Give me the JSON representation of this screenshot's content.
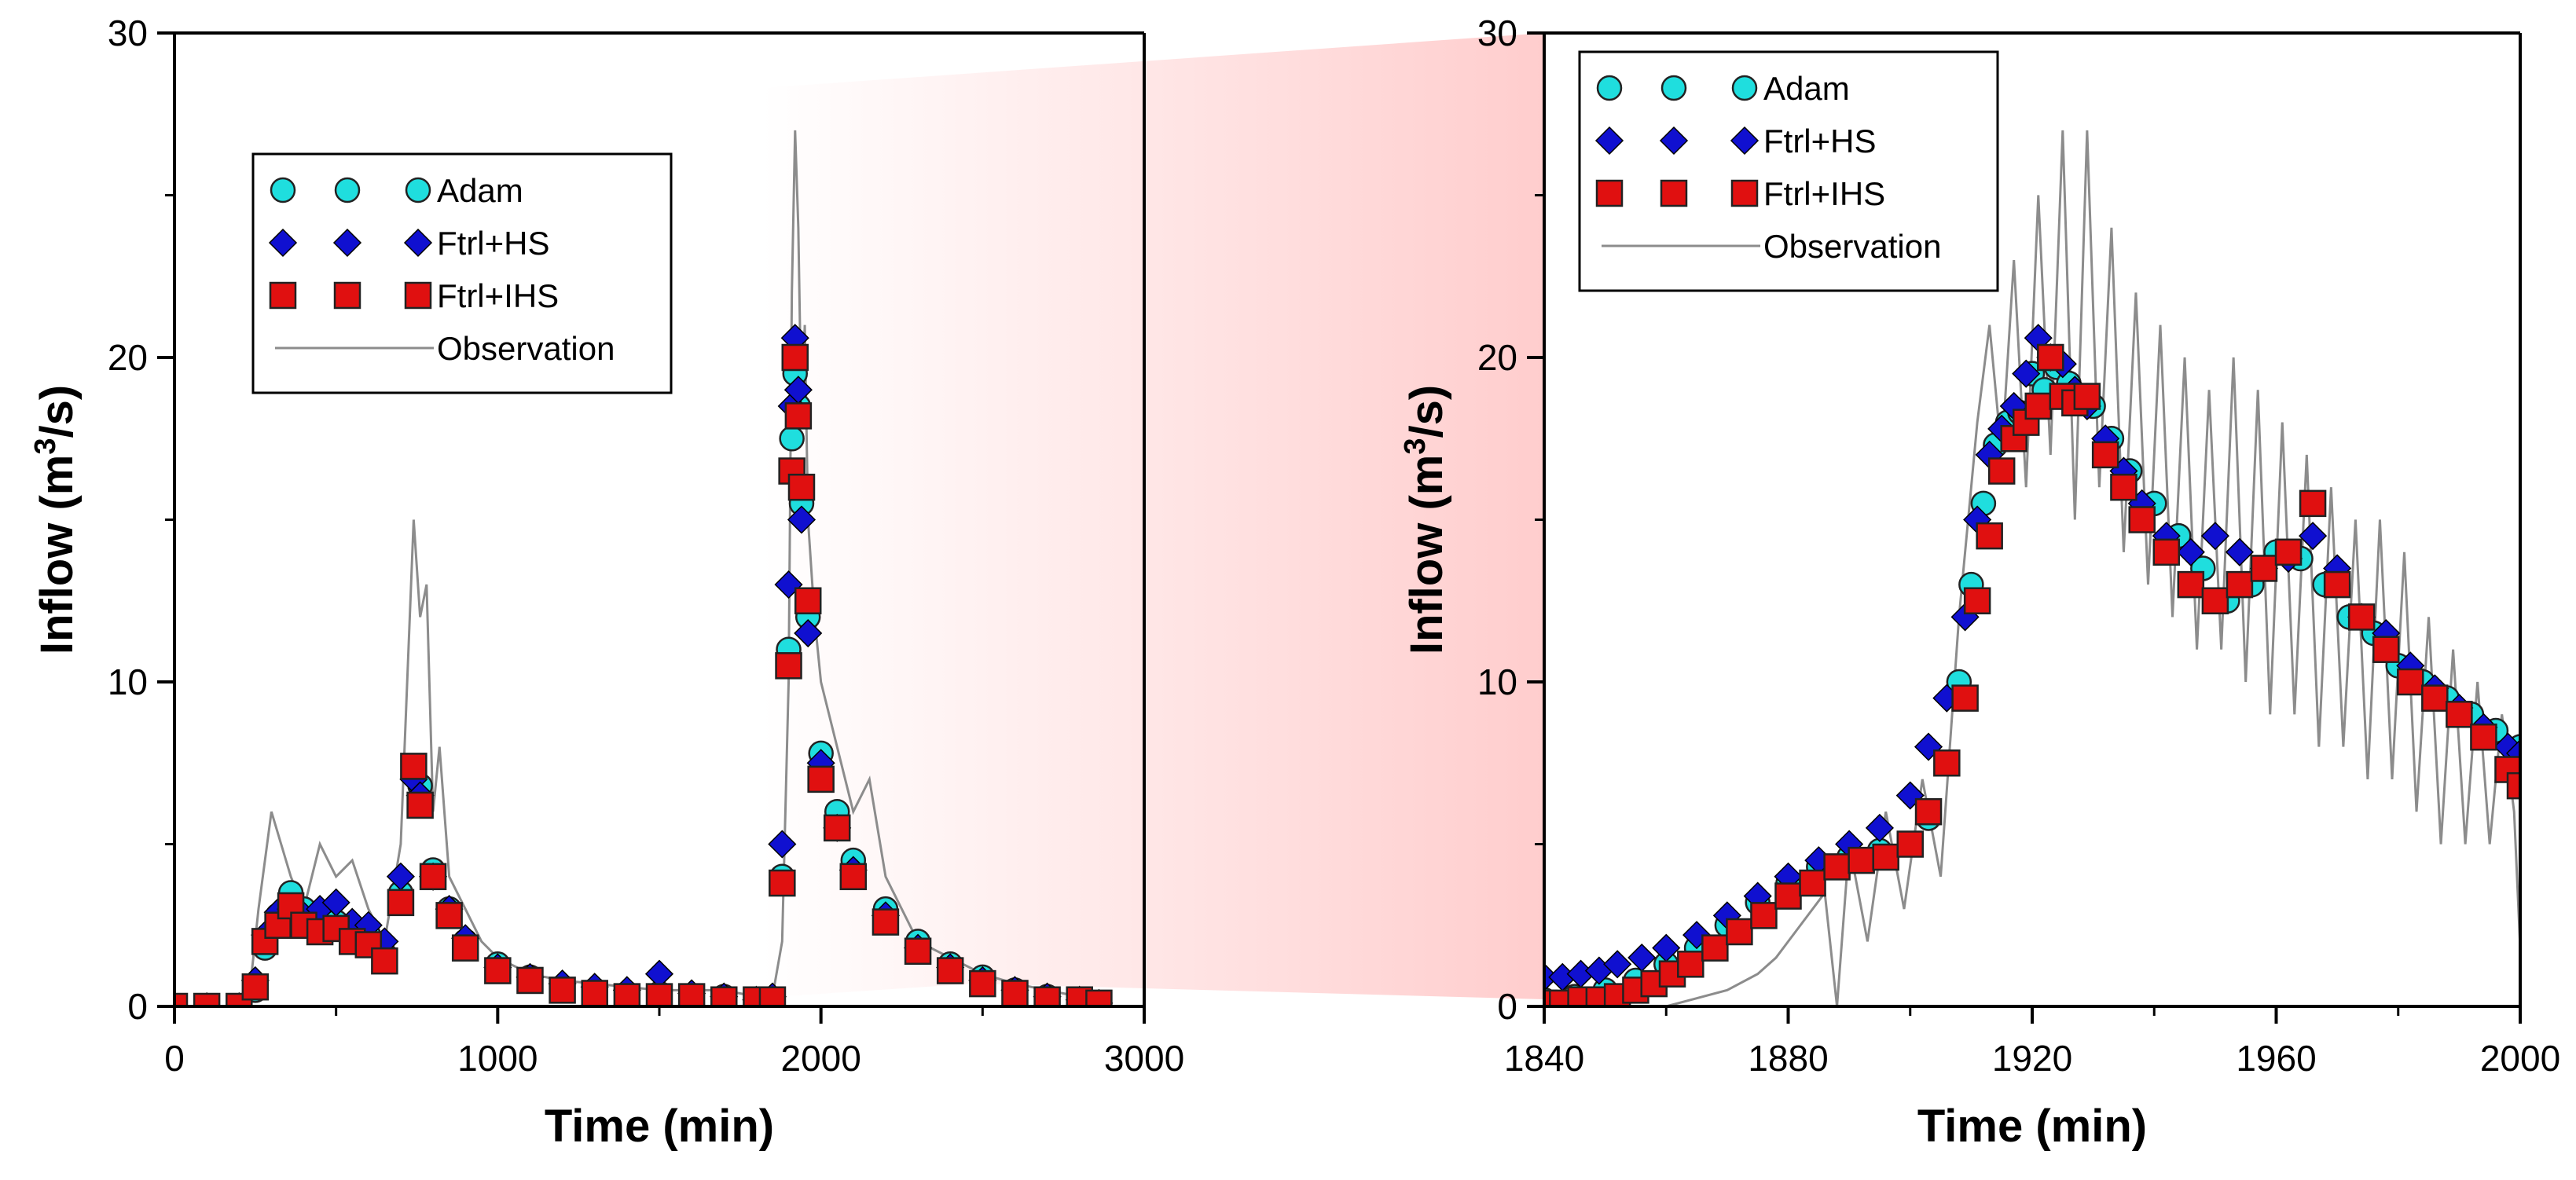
{
  "chart_data": [
    {
      "type": "scatter",
      "panel": "left",
      "xlabel": "Time (min)",
      "ylabel_prefix": "Inflow (m",
      "ylabel_sup": "3",
      "ylabel_suffix": "/s)",
      "xlim": [
        0,
        3000
      ],
      "ylim": [
        0,
        30
      ],
      "xticks": [
        0,
        1000,
        2000,
        3000
      ],
      "yticks": [
        0,
        10,
        20,
        30
      ],
      "legend_position": "upper-left",
      "legend": [
        "Adam",
        "Ftrl+HS",
        "Ftrl+IHS",
        "Observation"
      ],
      "series": [
        {
          "name": "Adam",
          "marker": "circle",
          "color": "#1fdede",
          "x": [
            0,
            100,
            200,
            250,
            280,
            320,
            360,
            400,
            450,
            500,
            550,
            600,
            650,
            700,
            740,
            760,
            800,
            850,
            900,
            1000,
            1100,
            1200,
            1300,
            1400,
            1500,
            1600,
            1700,
            1800,
            1850,
            1880,
            1900,
            1910,
            1920,
            1930,
            1940,
            1960,
            2000,
            2050,
            2100,
            2200,
            2300,
            2400,
            2500,
            2600,
            2700,
            2800,
            2860
          ],
          "y": [
            0,
            0,
            0,
            0.5,
            1.8,
            2.8,
            3.5,
            3.0,
            2.7,
            2.6,
            2.3,
            2.2,
            1.6,
            3.5,
            7.2,
            6.8,
            4.2,
            3.0,
            2.0,
            1.3,
            0.9,
            0.6,
            0.5,
            0.4,
            0.4,
            0.3,
            0.3,
            0.2,
            0.2,
            4.0,
            11,
            17.5,
            19.5,
            18.5,
            15.5,
            12,
            7.8,
            6.0,
            4.5,
            3.0,
            2.0,
            1.3,
            0.9,
            0.5,
            0.3,
            0.2,
            0.1
          ]
        },
        {
          "name": "Ftrl+HS",
          "marker": "diamond",
          "color": "#1010d0",
          "x": [
            0,
            100,
            200,
            250,
            280,
            320,
            360,
            400,
            450,
            500,
            550,
            600,
            650,
            700,
            740,
            760,
            800,
            850,
            900,
            1000,
            1100,
            1200,
            1300,
            1400,
            1500,
            1600,
            1700,
            1800,
            1850,
            1880,
            1900,
            1910,
            1920,
            1930,
            1940,
            1960,
            2000,
            2050,
            2100,
            2200,
            2300,
            2400,
            2500,
            2600,
            2700,
            2800,
            2860
          ],
          "y": [
            0,
            0,
            0,
            0.8,
            2.2,
            2.9,
            3.0,
            2.8,
            3.0,
            3.2,
            2.6,
            2.5,
            2.0,
            4.0,
            7.0,
            6.5,
            4.0,
            3.0,
            2.1,
            1.2,
            0.9,
            0.7,
            0.6,
            0.5,
            1.0,
            0.4,
            0.3,
            0.2,
            0.3,
            5.0,
            13,
            18.5,
            20.6,
            19.0,
            15,
            11.5,
            7.5,
            5.5,
            4.2,
            2.8,
            1.8,
            1.2,
            0.8,
            0.5,
            0.3,
            0.2,
            0.1
          ]
        },
        {
          "name": "Ftrl+IHS",
          "marker": "square",
          "color": "#e01010",
          "x": [
            0,
            100,
            200,
            250,
            280,
            320,
            360,
            400,
            450,
            500,
            550,
            600,
            650,
            700,
            740,
            760,
            800,
            850,
            900,
            1000,
            1100,
            1200,
            1300,
            1400,
            1500,
            1600,
            1700,
            1800,
            1850,
            1880,
            1900,
            1910,
            1920,
            1930,
            1940,
            1960,
            2000,
            2050,
            2100,
            2200,
            2300,
            2400,
            2500,
            2600,
            2700,
            2800,
            2860
          ],
          "y": [
            0,
            0,
            0,
            0.6,
            2.0,
            2.5,
            3.1,
            2.5,
            2.3,
            2.4,
            2.0,
            1.9,
            1.4,
            3.2,
            7.4,
            6.2,
            4.0,
            2.8,
            1.8,
            1.1,
            0.8,
            0.5,
            0.4,
            0.3,
            0.3,
            0.3,
            0.2,
            0.2,
            0.2,
            3.8,
            10.5,
            16.5,
            20,
            18.2,
            16,
            12.5,
            7.0,
            5.5,
            4.0,
            2.6,
            1.7,
            1.1,
            0.7,
            0.4,
            0.2,
            0.2,
            0.1
          ]
        },
        {
          "name": "Observation",
          "marker": "line",
          "color": "#8c8c8c",
          "x": [
            0,
            200,
            230,
            260,
            300,
            330,
            360,
            400,
            450,
            500,
            550,
            600,
            650,
            700,
            720,
            740,
            760,
            780,
            800,
            820,
            850,
            900,
            950,
            1000,
            1100,
            1200,
            1300,
            1400,
            1500,
            1600,
            1700,
            1800,
            1850,
            1880,
            1900,
            1910,
            1920,
            1930,
            1940,
            1950,
            1960,
            1980,
            2000,
            2050,
            2100,
            2150,
            2200,
            2300,
            2400,
            2500,
            2600,
            2700,
            2800,
            2860
          ],
          "y": [
            0,
            0,
            0.2,
            3,
            6,
            5,
            4,
            3,
            5,
            4,
            4.5,
            3,
            2,
            5,
            10,
            15,
            12,
            13,
            6,
            8,
            4,
            3,
            2,
            1.5,
            1,
            0.8,
            0.7,
            0.6,
            0.5,
            0.5,
            0.5,
            0.3,
            0.3,
            2,
            10,
            22,
            27,
            24,
            18,
            21,
            15,
            12,
            10,
            8,
            6,
            7,
            4,
            2,
            1.5,
            1,
            0.7,
            0.5,
            0.3,
            0.2
          ]
        }
      ]
    },
    {
      "type": "scatter",
      "panel": "right",
      "xlabel": "Time (min)",
      "ylabel_prefix": "Inflow (m",
      "ylabel_sup": "3",
      "ylabel_suffix": "/s)",
      "xlim": [
        1840,
        2000
      ],
      "ylim": [
        0,
        30
      ],
      "xticks": [
        1840,
        1880,
        1920,
        1960,
        2000
      ],
      "yticks": [
        0,
        10,
        20,
        30
      ],
      "legend_position": "upper-left",
      "legend": [
        "Adam",
        "Ftrl+HS",
        "Ftrl+IHS",
        "Observation"
      ],
      "series": [
        {
          "name": "Adam",
          "marker": "circle",
          "color": "#1fdede",
          "x": [
            1840,
            1845,
            1850,
            1855,
            1860,
            1865,
            1870,
            1875,
            1880,
            1885,
            1890,
            1895,
            1900,
            1903,
            1906,
            1908,
            1910,
            1912,
            1914,
            1916,
            1918,
            1920,
            1922,
            1924,
            1926,
            1928,
            1930,
            1933,
            1936,
            1940,
            1944,
            1948,
            1952,
            1956,
            1960,
            1964,
            1968,
            1972,
            1976,
            1980,
            1984,
            1988,
            1992,
            1996,
            2000
          ],
          "y": [
            0.2,
            0.3,
            0.5,
            0.8,
            1.3,
            1.8,
            2.5,
            3.2,
            3.8,
            4.3,
            4.6,
            4.8,
            5.0,
            5.8,
            7.5,
            10,
            13,
            15.5,
            17.3,
            18,
            18.3,
            19.5,
            19.0,
            19.7,
            19.2,
            18.8,
            18.5,
            17.5,
            16.5,
            15.5,
            14.5,
            13.5,
            12.5,
            13,
            14,
            13.8,
            13,
            12,
            11.5,
            10.5,
            10,
            9.5,
            9,
            8.5,
            8
          ]
        },
        {
          "name": "Ftrl+HS",
          "marker": "diamond",
          "color": "#1010d0",
          "x": [
            1840,
            1843,
            1846,
            1849,
            1852,
            1856,
            1860,
            1865,
            1870,
            1875,
            1880,
            1885,
            1890,
            1895,
            1900,
            1903,
            1906,
            1909,
            1911,
            1913,
            1915,
            1917,
            1919,
            1921,
            1923,
            1925,
            1927,
            1929,
            1932,
            1935,
            1938,
            1942,
            1946,
            1950,
            1954,
            1958,
            1962,
            1966,
            1970,
            1974,
            1978,
            1982,
            1986,
            1990,
            1994,
            1998,
            2000
          ],
          "y": [
            0.9,
            0.9,
            1.0,
            1.1,
            1.3,
            1.5,
            1.8,
            2.2,
            2.8,
            3.4,
            4.0,
            4.5,
            5.0,
            5.5,
            6.5,
            8,
            9.5,
            12,
            15,
            17,
            17.8,
            18.5,
            19.5,
            20.6,
            20,
            19.8,
            19.0,
            18.5,
            17.5,
            16.5,
            15.5,
            14.5,
            14,
            14.5,
            14,
            13.5,
            13.8,
            14.5,
            13.5,
            12,
            11.5,
            10.5,
            9.8,
            9.2,
            8.6,
            8,
            7.8
          ]
        },
        {
          "name": "Ftrl+IHS",
          "marker": "square",
          "color": "#e01010",
          "x": [
            1840,
            1843,
            1846,
            1849,
            1852,
            1855,
            1858,
            1861,
            1864,
            1868,
            1872,
            1876,
            1880,
            1884,
            1888,
            1892,
            1896,
            1900,
            1903,
            1906,
            1909,
            1911,
            1913,
            1915,
            1917,
            1919,
            1921,
            1923,
            1925,
            1927,
            1929,
            1932,
            1935,
            1938,
            1942,
            1946,
            1950,
            1954,
            1958,
            1962,
            1966,
            1970,
            1974,
            1978,
            1982,
            1986,
            1990,
            1994,
            1998,
            2000
          ],
          "y": [
            0.1,
            0.1,
            0.2,
            0.2,
            0.3,
            0.5,
            0.7,
            1.0,
            1.3,
            1.8,
            2.3,
            2.8,
            3.4,
            3.8,
            4.3,
            4.5,
            4.6,
            5.0,
            6.0,
            7.5,
            9.5,
            12.5,
            14.5,
            16.5,
            17.5,
            18,
            18.5,
            20,
            18.8,
            18.6,
            18.8,
            17,
            16,
            15,
            14,
            13,
            12.5,
            13,
            13.5,
            14,
            15.5,
            13,
            12,
            11,
            10,
            9.5,
            9,
            8.3,
            7.3,
            6.8
          ]
        },
        {
          "name": "Observation",
          "marker": "line",
          "color": "#8c8c8c",
          "x": [
            1840,
            1860,
            1870,
            1875,
            1878,
            1880,
            1882,
            1884,
            1886,
            1888,
            1890,
            1893,
            1896,
            1899,
            1902,
            1905,
            1908,
            1911,
            1913,
            1915,
            1917,
            1919,
            1921,
            1923,
            1925,
            1927,
            1929,
            1931,
            1933,
            1935,
            1937,
            1939,
            1941,
            1943,
            1945,
            1947,
            1949,
            1951,
            1953,
            1955,
            1957,
            1959,
            1961,
            1963,
            1965,
            1967,
            1969,
            1971,
            1973,
            1975,
            1977,
            1979,
            1981,
            1983,
            1985,
            1987,
            1989,
            1991,
            1993,
            1995,
            1997,
            1999,
            2000
          ],
          "y": [
            0,
            0,
            0.5,
            1,
            1.5,
            2,
            2.5,
            3,
            3.5,
            0,
            5,
            2,
            6,
            3,
            7,
            4,
            12,
            18,
            21,
            17,
            23,
            16,
            25,
            17,
            27,
            15,
            27,
            16,
            24,
            14,
            22,
            13,
            21,
            12,
            20,
            11,
            19,
            11,
            20,
            10,
            19,
            9,
            18,
            9,
            17,
            8,
            16,
            8,
            15,
            7,
            15,
            7,
            14,
            6,
            12,
            5,
            11,
            5,
            10,
            5,
            9,
            6,
            1.8
          ]
        }
      ]
    }
  ]
}
